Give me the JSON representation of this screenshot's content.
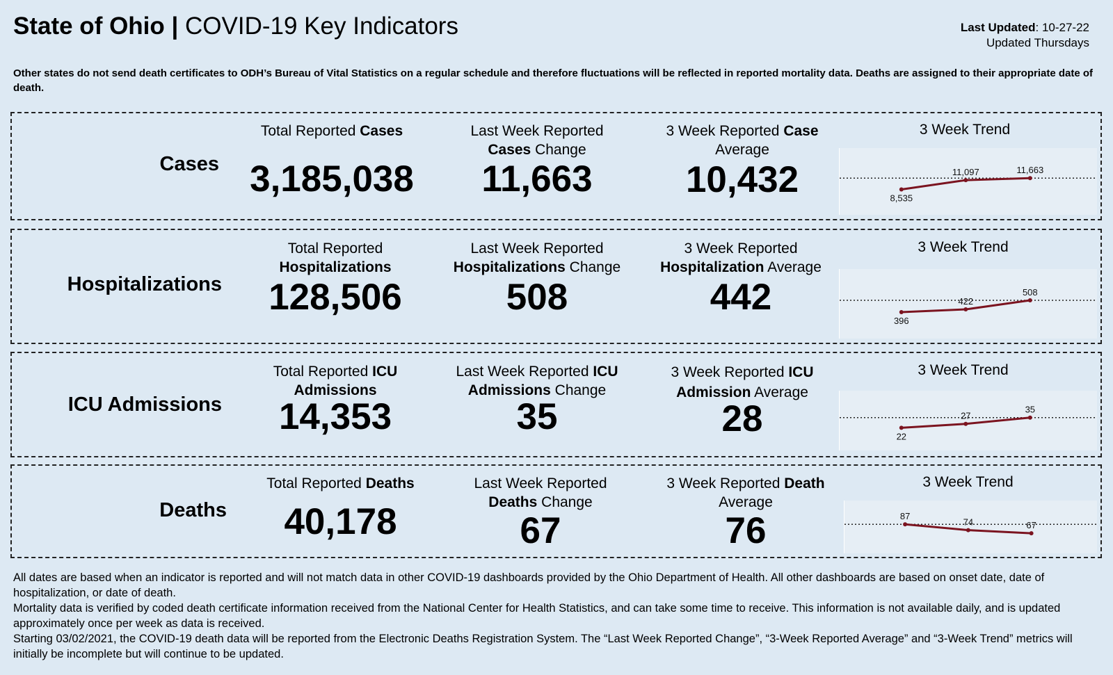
{
  "header": {
    "title_bold": "State of Ohio |",
    "title_regular": "COVID-19 Key Indicators",
    "last_updated_label": "Last Updated",
    "last_updated_value": ": 10-27-22",
    "update_schedule": "Updated Thursdays"
  },
  "notice": "Other states do not send death certificates to ODH’s Bureau of Vital Statistics on a regular schedule and therefore fluctuations will be reflected in reported mortality data. Deaths are assigned to their appropriate date of death.",
  "panels": [
    {
      "label": "Cases",
      "total": {
        "pre": "Total Reported ",
        "bold": "Cases",
        "post": "",
        "value": "3,185,038"
      },
      "change": {
        "pre": "Last Week Reported ",
        "bold": "Cases",
        "post": " Change",
        "value": "11,663"
      },
      "average": {
        "pre": "3 Week Reported ",
        "bold": "Case",
        "post": " Average",
        "value": "10,432"
      },
      "trend": {
        "title": "3 Week Trend",
        "points": [
          8535,
          11097,
          11663
        ],
        "labels": [
          "8,535",
          "11,097",
          "11,663"
        ]
      }
    },
    {
      "label": "Hospitalizations",
      "total": {
        "pre": "Total Reported ",
        "bold": "Hospitalizations",
        "post": "",
        "value": "128,506"
      },
      "change": {
        "pre": "Last Week Reported ",
        "bold": "Hospitalizations",
        "post": " Change",
        "value": "508"
      },
      "average": {
        "pre": "3 Week Reported ",
        "bold": "Hospitalization",
        "post": " Average",
        "value": "442"
      },
      "trend": {
        "title": "3 Week Trend",
        "points": [
          396,
          422,
          508
        ],
        "labels": [
          "396",
          "422",
          "508"
        ]
      }
    },
    {
      "label": "ICU Admissions",
      "total": {
        "pre": "Total Reported ",
        "bold": "ICU Admissions",
        "post": "",
        "value": "14,353"
      },
      "change": {
        "pre": "Last Week Reported ",
        "bold": "ICU Admissions",
        "post": " Change",
        "value": "35"
      },
      "average": {
        "pre": "3 Week Reported ",
        "bold": "ICU Admission",
        "post": " Average",
        "value": "28"
      },
      "trend": {
        "title": "3 Week Trend",
        "points": [
          22,
          27,
          35
        ],
        "labels": [
          "22",
          "27",
          "35"
        ]
      }
    },
    {
      "label": "Deaths",
      "total": {
        "pre": "Total Reported ",
        "bold": "Deaths",
        "post": "",
        "value": "40,178"
      },
      "change": {
        "pre": "Last Week Reported ",
        "bold": "Deaths",
        "post": " Change",
        "value": "67"
      },
      "average": {
        "pre": "3 Week Reported ",
        "bold": "Death",
        "post": " Average",
        "value": "76"
      },
      "trend": {
        "title": "3 Week Trend",
        "points": [
          87,
          74,
          67
        ],
        "labels": [
          "87",
          "74",
          "67"
        ]
      }
    }
  ],
  "footer": {
    "line1": "All dates are based when an indicator is reported and will not match data in other COVID-19 dashboards provided by the Ohio Department of Health. All other dashboards are based on onset date, date of hospitalization, or date of death.",
    "line2": "Mortality data is verified by coded death certificate information received from the National Center for Health Statistics, and can take some time to receive. This information is not available daily, and is updated approximately once per week as data is received.",
    "line3": "Starting 03/02/2021, the COVID-19 death data will be reported from the Electronic Deaths Registration System. The “Last Week Reported Change”, “3-Week Reported Average” and “3-Week Trend” metrics will initially be incomplete but will continue to be updated."
  },
  "colors": {
    "trend_line": "#7b1420",
    "background": "#dde9f3"
  }
}
